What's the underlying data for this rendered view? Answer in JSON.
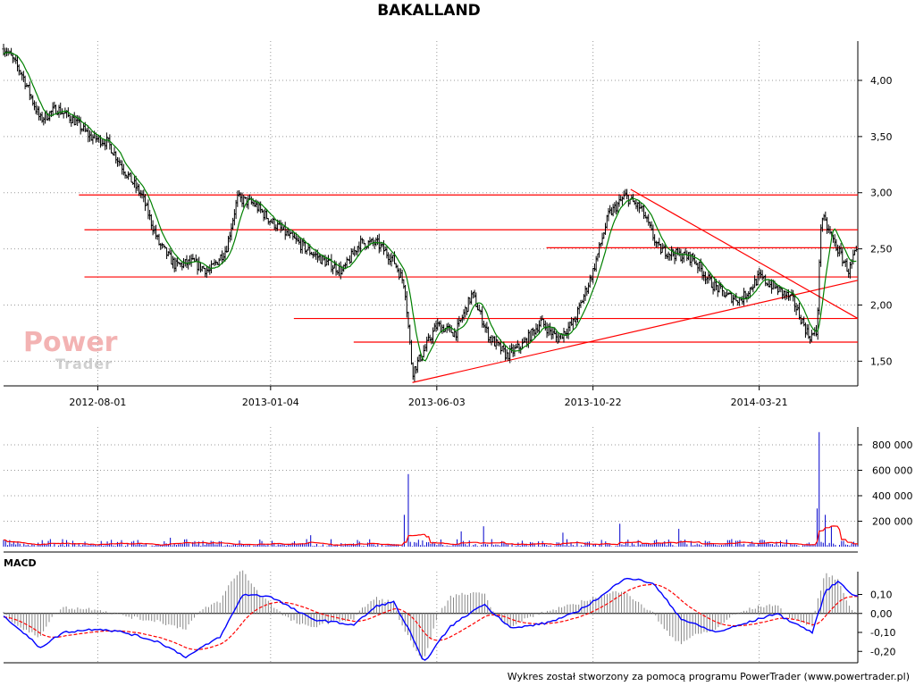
{
  "header": {
    "title": "BAKALLAND"
  },
  "footer": {
    "credit": "Wykres został stworzony za pomocą programu PowerTrader (www.powertrader.pl)"
  },
  "watermark": {
    "line1": "Power",
    "line2": "Trader"
  },
  "colors": {
    "price": "#000000",
    "sma": "#008000",
    "lines": "#ff0000",
    "volume": "#0000cc",
    "volume_avg": "#ff0000",
    "macd": "#0000ff",
    "signal": "#ff0000",
    "grid": "#999999"
  },
  "chart_data": [
    {
      "type": "candlestick",
      "title": "BAKALLAND",
      "x_tick_labels": [
        "2012-08-01",
        "2013-01-04",
        "2013-06-03",
        "2013-10-22",
        "2014-03-21"
      ],
      "y_tick_labels": [
        "4,00",
        "3,50",
        "3,00",
        "2,50",
        "2,00",
        "1,50"
      ],
      "y_ticks": [
        4.0,
        3.5,
        3.0,
        2.5,
        2.0,
        1.5
      ],
      "ylim": [
        1.28,
        4.35
      ],
      "grid": true,
      "price_path": [
        {
          "d": "2012-05-10",
          "v": 4.28
        },
        {
          "d": "2012-05-25",
          "v": 4.05
        },
        {
          "d": "2012-06-10",
          "v": 3.65
        },
        {
          "d": "2012-06-25",
          "v": 3.75
        },
        {
          "d": "2012-07-10",
          "v": 3.65
        },
        {
          "d": "2012-07-25",
          "v": 3.5
        },
        {
          "d": "2012-08-10",
          "v": 3.45
        },
        {
          "d": "2012-08-25",
          "v": 3.2
        },
        {
          "d": "2012-09-10",
          "v": 2.97
        },
        {
          "d": "2012-09-25",
          "v": 2.55
        },
        {
          "d": "2012-10-10",
          "v": 2.35
        },
        {
          "d": "2012-10-25",
          "v": 2.38
        },
        {
          "d": "2012-11-10",
          "v": 2.3
        },
        {
          "d": "2012-11-25",
          "v": 2.5
        },
        {
          "d": "2012-12-05",
          "v": 2.95
        },
        {
          "d": "2012-12-20",
          "v": 2.9
        },
        {
          "d": "2013-01-04",
          "v": 2.75
        },
        {
          "d": "2013-01-20",
          "v": 2.62
        },
        {
          "d": "2013-02-05",
          "v": 2.5
        },
        {
          "d": "2013-02-20",
          "v": 2.4
        },
        {
          "d": "2013-03-10",
          "v": 2.3
        },
        {
          "d": "2013-03-25",
          "v": 2.55
        },
        {
          "d": "2013-04-10",
          "v": 2.55
        },
        {
          "d": "2013-04-25",
          "v": 2.4
        },
        {
          "d": "2013-05-05",
          "v": 2.18
        },
        {
          "d": "2013-05-12",
          "v": 1.4
        },
        {
          "d": "2013-05-20",
          "v": 1.55
        },
        {
          "d": "2013-06-03",
          "v": 1.82
        },
        {
          "d": "2013-06-20",
          "v": 1.75
        },
        {
          "d": "2013-07-05",
          "v": 2.1
        },
        {
          "d": "2013-07-20",
          "v": 1.72
        },
        {
          "d": "2013-08-05",
          "v": 1.55
        },
        {
          "d": "2013-08-20",
          "v": 1.65
        },
        {
          "d": "2013-09-05",
          "v": 1.85
        },
        {
          "d": "2013-09-20",
          "v": 1.7
        },
        {
          "d": "2013-10-05",
          "v": 1.85
        },
        {
          "d": "2013-10-22",
          "v": 2.3
        },
        {
          "d": "2013-11-05",
          "v": 2.8
        },
        {
          "d": "2013-11-20",
          "v": 2.97
        },
        {
          "d": "2013-12-05",
          "v": 2.85
        },
        {
          "d": "2013-12-20",
          "v": 2.5
        },
        {
          "d": "2014-01-05",
          "v": 2.45
        },
        {
          "d": "2014-01-20",
          "v": 2.42
        },
        {
          "d": "2014-02-05",
          "v": 2.2
        },
        {
          "d": "2014-02-20",
          "v": 2.08
        },
        {
          "d": "2014-03-05",
          "v": 2.05
        },
        {
          "d": "2014-03-21",
          "v": 2.25
        },
        {
          "d": "2014-04-05",
          "v": 2.15
        },
        {
          "d": "2014-04-20",
          "v": 2.05
        },
        {
          "d": "2014-05-05",
          "v": 1.72
        },
        {
          "d": "2014-05-12",
          "v": 1.75
        },
        {
          "d": "2014-05-16",
          "v": 2.8
        },
        {
          "d": "2014-05-28",
          "v": 2.55
        },
        {
          "d": "2014-06-10",
          "v": 2.3
        },
        {
          "d": "2014-06-15",
          "v": 2.45
        }
      ],
      "x_range": [
        "2012-05-08",
        "2014-06-18"
      ],
      "horizontal_levels": [
        {
          "y": 2.98,
          "from": "2012-07-15",
          "to": "2014-06-18"
        },
        {
          "y": 2.67,
          "from": "2012-07-20",
          "to": "2014-06-18"
        },
        {
          "y": 2.51,
          "from": "2013-09-10",
          "to": "2014-06-18"
        },
        {
          "y": 2.25,
          "from": "2012-07-20",
          "to": "2014-06-18"
        },
        {
          "y": 1.88,
          "from": "2013-01-25",
          "to": "2014-06-18"
        },
        {
          "y": 1.67,
          "from": "2013-03-20",
          "to": "2014-06-18"
        }
      ],
      "trend_lines": [
        {
          "x1": "2013-05-12",
          "y1": 1.31,
          "x2": "2014-06-18",
          "y2": 2.22
        },
        {
          "x1": "2013-11-25",
          "y1": 3.03,
          "x2": "2014-06-18",
          "y2": 1.88
        }
      ]
    },
    {
      "type": "bar",
      "title": "",
      "y_tick_labels": [
        "800 000",
        "600 000",
        "400 000",
        "200 000"
      ],
      "y_ticks": [
        800000,
        600000,
        400000,
        200000
      ],
      "ylim": [
        0,
        940000
      ],
      "spikes": [
        {
          "d": "2013-05-08",
          "v": 570000
        },
        {
          "d": "2013-05-05",
          "v": 250000
        },
        {
          "d": "2013-06-25",
          "v": 120000
        },
        {
          "d": "2013-07-15",
          "v": 160000
        },
        {
          "d": "2013-09-25",
          "v": 110000
        },
        {
          "d": "2013-11-15",
          "v": 180000
        },
        {
          "d": "2014-01-08",
          "v": 140000
        },
        {
          "d": "2014-05-14",
          "v": 900000
        },
        {
          "d": "2014-05-12",
          "v": 300000
        },
        {
          "d": "2014-05-20",
          "v": 250000
        },
        {
          "d": "2014-05-25",
          "v": 160000
        },
        {
          "d": "2012-10-05",
          "v": 70000
        },
        {
          "d": "2013-02-10",
          "v": 90000
        }
      ]
    },
    {
      "type": "line",
      "title": "MACD",
      "y_tick_labels": [
        "0,10",
        "0,00",
        "-0,10",
        "-0,20"
      ],
      "y_ticks": [
        0.1,
        0.0,
        -0.1,
        -0.2
      ],
      "ylim": [
        -0.26,
        0.22
      ],
      "macd_path": [
        {
          "d": "2012-05-10",
          "v": -0.02
        },
        {
          "d": "2012-06-10",
          "v": -0.18
        },
        {
          "d": "2012-07-01",
          "v": -0.1
        },
        {
          "d": "2012-08-01",
          "v": -0.08
        },
        {
          "d": "2012-08-25",
          "v": -0.1
        },
        {
          "d": "2012-09-25",
          "v": -0.15
        },
        {
          "d": "2012-10-20",
          "v": -0.23
        },
        {
          "d": "2012-11-20",
          "v": -0.12
        },
        {
          "d": "2012-12-10",
          "v": 0.1
        },
        {
          "d": "2013-01-04",
          "v": 0.09
        },
        {
          "d": "2013-02-10",
          "v": -0.03
        },
        {
          "d": "2013-03-20",
          "v": -0.06
        },
        {
          "d": "2013-04-10",
          "v": 0.04
        },
        {
          "d": "2013-04-25",
          "v": 0.06
        },
        {
          "d": "2013-05-10",
          "v": -0.1
        },
        {
          "d": "2013-05-22",
          "v": -0.26
        },
        {
          "d": "2013-06-15",
          "v": -0.07
        },
        {
          "d": "2013-07-15",
          "v": 0.05
        },
        {
          "d": "2013-08-10",
          "v": -0.08
        },
        {
          "d": "2013-09-10",
          "v": -0.05
        },
        {
          "d": "2013-10-05",
          "v": 0.0
        },
        {
          "d": "2013-11-01",
          "v": 0.1
        },
        {
          "d": "2013-11-20",
          "v": 0.19
        },
        {
          "d": "2013-12-15",
          "v": 0.16
        },
        {
          "d": "2014-01-10",
          "v": -0.03
        },
        {
          "d": "2014-02-10",
          "v": -0.1
        },
        {
          "d": "2014-03-10",
          "v": -0.05
        },
        {
          "d": "2014-04-05",
          "v": 0.0
        },
        {
          "d": "2014-05-08",
          "v": -0.1
        },
        {
          "d": "2014-05-20",
          "v": 0.12
        },
        {
          "d": "2014-06-01",
          "v": 0.17
        },
        {
          "d": "2014-06-15",
          "v": 0.09
        }
      ]
    }
  ]
}
